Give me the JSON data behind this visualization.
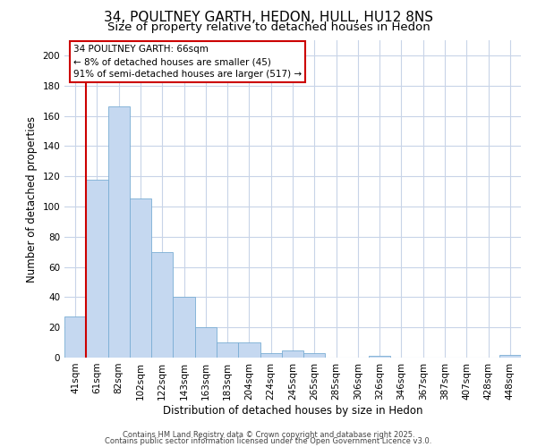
{
  "title": "34, POULTNEY GARTH, HEDON, HULL, HU12 8NS",
  "subtitle": "Size of property relative to detached houses in Hedon",
  "xlabel": "Distribution of detached houses by size in Hedon",
  "ylabel": "Number of detached properties",
  "bar_color": "#c5d8f0",
  "bar_edge_color": "#7aadd4",
  "background_color": "#ffffff",
  "grid_color": "#c8d4e8",
  "categories": [
    "41sqm",
    "61sqm",
    "82sqm",
    "102sqm",
    "122sqm",
    "143sqm",
    "163sqm",
    "183sqm",
    "204sqm",
    "224sqm",
    "245sqm",
    "265sqm",
    "285sqm",
    "306sqm",
    "326sqm",
    "346sqm",
    "367sqm",
    "387sqm",
    "407sqm",
    "428sqm",
    "448sqm"
  ],
  "values": [
    27,
    118,
    166,
    105,
    70,
    40,
    20,
    10,
    10,
    3,
    5,
    3,
    0,
    0,
    1,
    0,
    0,
    0,
    0,
    0,
    2
  ],
  "annotation_text": "34 POULTNEY GARTH: 66sqm\n← 8% of detached houses are smaller (45)\n91% of semi-detached houses are larger (517) →",
  "annotation_box_color": "#ffffff",
  "annotation_box_edge": "#cc0000",
  "redline_color": "#cc0000",
  "footer1": "Contains HM Land Registry data © Crown copyright and database right 2025.",
  "footer2": "Contains public sector information licensed under the Open Government Licence v3.0.",
  "ylim": [
    0,
    210
  ],
  "yticks": [
    0,
    20,
    40,
    60,
    80,
    100,
    120,
    140,
    160,
    180,
    200
  ],
  "title_fontsize": 11,
  "subtitle_fontsize": 9.5,
  "tick_fontsize": 7.5,
  "ylabel_fontsize": 8.5,
  "xlabel_fontsize": 8.5,
  "annotation_fontsize": 7.5,
  "footer_fontsize": 6.0
}
